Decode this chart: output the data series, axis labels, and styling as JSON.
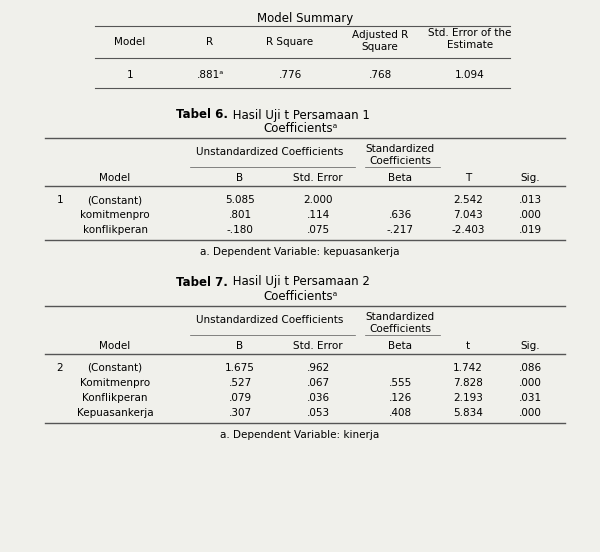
{
  "bg_color": "#f0f0eb",
  "text_color": "#000000",
  "model_summary_title": "Model Summary",
  "model_summary_row": [
    "1",
    ".881ᵃ",
    ".776",
    ".768",
    "1.094"
  ],
  "table6_title_bold": "Tabel 6.",
  "table6_title_normal": " Hasil Uji t Persamaan 1",
  "table6_subtitle": "Coefficientsᵃ",
  "table6_rows": [
    [
      "1",
      "(Constant)",
      "5.085",
      "2.000",
      "",
      "2.542",
      ".013"
    ],
    [
      "",
      "komitmenpro",
      ".801",
      ".114",
      ".636",
      "7.043",
      ".000"
    ],
    [
      "",
      "konflikperan",
      "-.180",
      ".075",
      "-.217",
      "-2.403",
      ".019"
    ]
  ],
  "table6_footnote": "a. Dependent Variable: kepuasankerja",
  "table7_title_bold": "Tabel 7.",
  "table7_title_normal": " Hasil Uji t Persamaan 2",
  "table7_subtitle": "Coefficientsᵃ",
  "table7_rows": [
    [
      "2",
      "(Constant)",
      "1.675",
      ".962",
      "",
      "1.742",
      ".086"
    ],
    [
      "",
      "Komitmenpro",
      ".527",
      ".067",
      ".555",
      "7.828",
      ".000"
    ],
    [
      "",
      "Konflikperan",
      ".079",
      ".036",
      ".126",
      "2.193",
      ".031"
    ],
    [
      "",
      "Kepuasankerja",
      ".307",
      ".053",
      ".408",
      "5.834",
      ".000"
    ]
  ],
  "table7_footnote": "a. Dependent Variable: kinerja"
}
